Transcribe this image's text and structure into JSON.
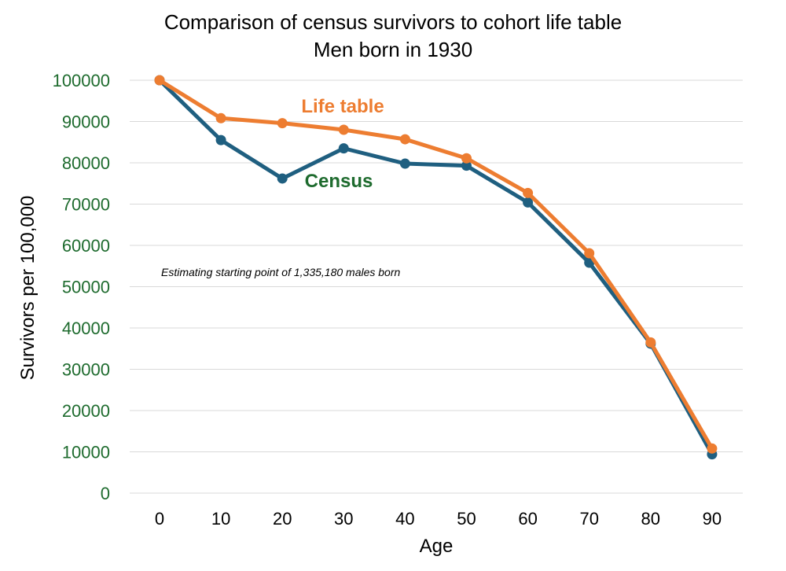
{
  "chart_data": {
    "type": "line",
    "title": "Comparison of census survivors to cohort life table",
    "subtitle": "Men born in 1930",
    "xlabel": "Age",
    "ylabel": "Survivors per 100,000",
    "x": [
      0,
      10,
      20,
      30,
      40,
      50,
      60,
      70,
      80,
      90
    ],
    "ylim": [
      0,
      100000
    ],
    "yticks": [
      0,
      10000,
      20000,
      30000,
      40000,
      50000,
      60000,
      70000,
      80000,
      90000,
      100000
    ],
    "grid": true,
    "series": [
      {
        "name": "Census",
        "label": "Census",
        "color": "#1f5f80",
        "label_color": "#1e6b2e",
        "values": [
          100000,
          85500,
          76200,
          83500,
          79800,
          79300,
          70400,
          55800,
          36200,
          9400
        ]
      },
      {
        "name": "Life table",
        "label": "Life table",
        "color": "#ed7d31",
        "label_color": "#ed7d31",
        "values": [
          100000,
          90800,
          89600,
          88000,
          85700,
          81100,
          72700,
          58100,
          36500,
          10800
        ]
      }
    ],
    "annotation": "Estimating starting point of 1,335,180 males born",
    "ytick_color": "#1e6b2e"
  }
}
